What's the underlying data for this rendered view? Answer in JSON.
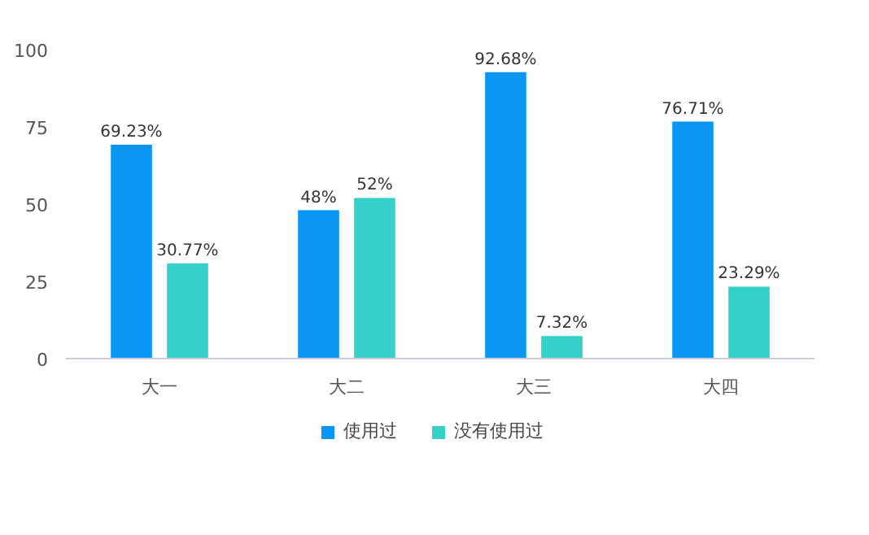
{
  "chart_data": {
    "type": "bar",
    "categories": [
      "大一",
      "大二",
      "大三",
      "大四"
    ],
    "series": [
      {
        "name": "使用过",
        "color": "#0a96f5",
        "values": [
          69.23,
          48,
          92.68,
          76.71
        ],
        "value_labels": [
          "69.23%",
          "48%",
          "92.68%",
          "76.71%"
        ]
      },
      {
        "name": "没有使用过",
        "color": "#35d0c8",
        "values": [
          30.77,
          52,
          7.32,
          23.29
        ],
        "value_labels": [
          "30.77%",
          "52%",
          "7.32%",
          "23.29%"
        ]
      }
    ],
    "ylim": [
      0,
      100
    ],
    "yticks": [
      0,
      25,
      50,
      75,
      100
    ],
    "grid": false,
    "legend": "bottom"
  }
}
